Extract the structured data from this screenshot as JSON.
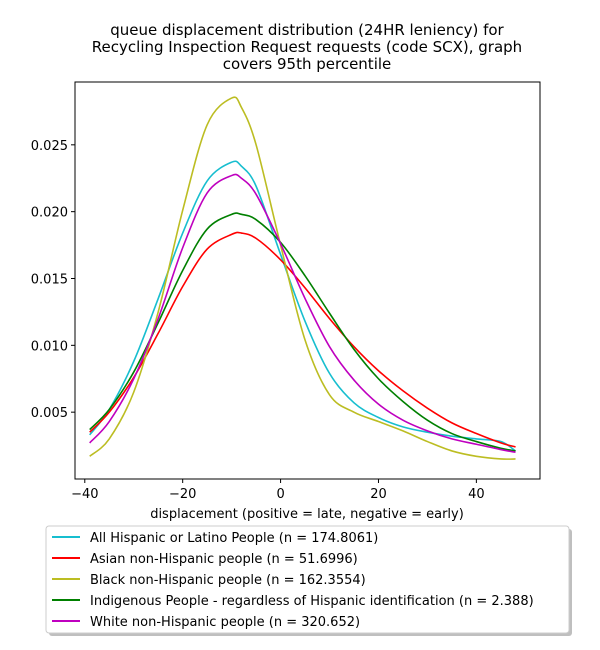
{
  "chart_data": {
    "type": "line",
    "title": [
      "queue displacement distribution (24HR leniency) for",
      "Recycling Inspection Request  requests (code SCX), graph",
      "covers 95th percentile"
    ],
    "xlabel": "displacement (positive = late, negative = early)",
    "ylabel": "",
    "xlim": [
      -42,
      53
    ],
    "ylim": [
      0.0,
      0.0297
    ],
    "xticks": [
      -40,
      -20,
      0,
      20,
      40
    ],
    "xtick_labels": [
      "−40",
      "−20",
      "0",
      "20",
      "40"
    ],
    "yticks": [
      0.005,
      0.01,
      0.015,
      0.02,
      0.025
    ],
    "ytick_labels": [
      "0.005",
      "0.010",
      "0.015",
      "0.020",
      "0.025"
    ],
    "grid": false,
    "legend_position": "below-left",
    "x": [
      -39,
      -35,
      -30,
      -25,
      -20,
      -15,
      -10,
      -8,
      -5,
      0,
      5,
      10,
      15,
      20,
      25,
      30,
      35,
      40,
      45,
      48
    ],
    "series": [
      {
        "name": "All Hispanic or Latino People (n = 174.8061)",
        "color": "#17becf",
        "values": [
          0.0033,
          0.0052,
          0.0088,
          0.0135,
          0.0184,
          0.0223,
          0.0237,
          0.0234,
          0.0219,
          0.0168,
          0.0118,
          0.0079,
          0.0057,
          0.0046,
          0.0039,
          0.0035,
          0.0032,
          0.003,
          0.0028,
          0.0021
        ]
      },
      {
        "name": "Asian non-Hispanic people (n = 51.6996)",
        "color": "#ff0000",
        "values": [
          0.0035,
          0.005,
          0.0076,
          0.0109,
          0.0144,
          0.0172,
          0.0183,
          0.0184,
          0.018,
          0.0164,
          0.0143,
          0.012,
          0.0099,
          0.0081,
          0.0066,
          0.0053,
          0.0042,
          0.0034,
          0.0027,
          0.0024
        ]
      },
      {
        "name": "Black non-Hispanic people (n = 162.3554)",
        "color": "#bcbd22",
        "values": [
          0.0017,
          0.003,
          0.0065,
          0.0125,
          0.0201,
          0.0265,
          0.0285,
          0.0278,
          0.025,
          0.0175,
          0.0104,
          0.0063,
          0.005,
          0.0043,
          0.0036,
          0.0028,
          0.0021,
          0.0017,
          0.0015,
          0.0015
        ]
      },
      {
        "name": "Indigenous People - regardless of Hispanic identification (n = 2.388)",
        "color": "#008000",
        "values": [
          0.0037,
          0.0052,
          0.008,
          0.0117,
          0.0156,
          0.0187,
          0.0198,
          0.0198,
          0.0194,
          0.0177,
          0.0152,
          0.0124,
          0.0097,
          0.0075,
          0.0058,
          0.0044,
          0.0034,
          0.0028,
          0.0023,
          0.0021
        ]
      },
      {
        "name": "White non-Hispanic people (n = 320.652)",
        "color": "#bf00bf",
        "values": [
          0.0027,
          0.0043,
          0.0075,
          0.012,
          0.0173,
          0.0214,
          0.0227,
          0.0225,
          0.0213,
          0.0176,
          0.0135,
          0.0099,
          0.0074,
          0.0056,
          0.0044,
          0.0036,
          0.003,
          0.0026,
          0.0022,
          0.002
        ]
      }
    ]
  }
}
